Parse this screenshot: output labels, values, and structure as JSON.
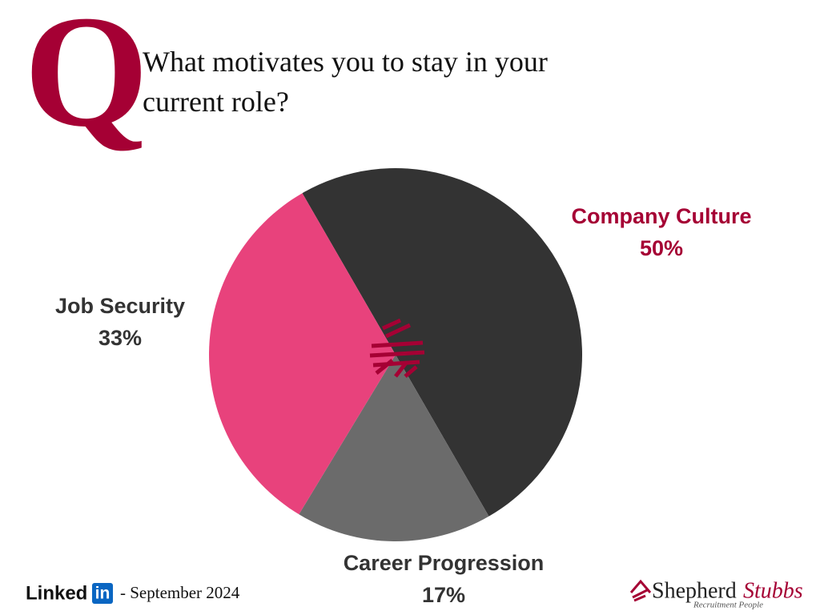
{
  "header": {
    "letter": "Q"
  },
  "chart_data": {
    "type": "pie",
    "title": "What motivates you to stay in your current role?",
    "categories": [
      "Company Culture",
      "Career Progression",
      "Job Security"
    ],
    "values": [
      50,
      17,
      33
    ],
    "value_labels": [
      "50%",
      "17%",
      "33%"
    ],
    "colors": [
      "#333333",
      "#6b6b6b",
      "#e8427c"
    ]
  },
  "footer": {
    "linkedin_word": "Linked",
    "linkedin_badge": "in",
    "date": "- September 2024",
    "brand_first": "Shepherd",
    "brand_second": "Stubbs",
    "brand_tagline": "Recruitment People"
  }
}
